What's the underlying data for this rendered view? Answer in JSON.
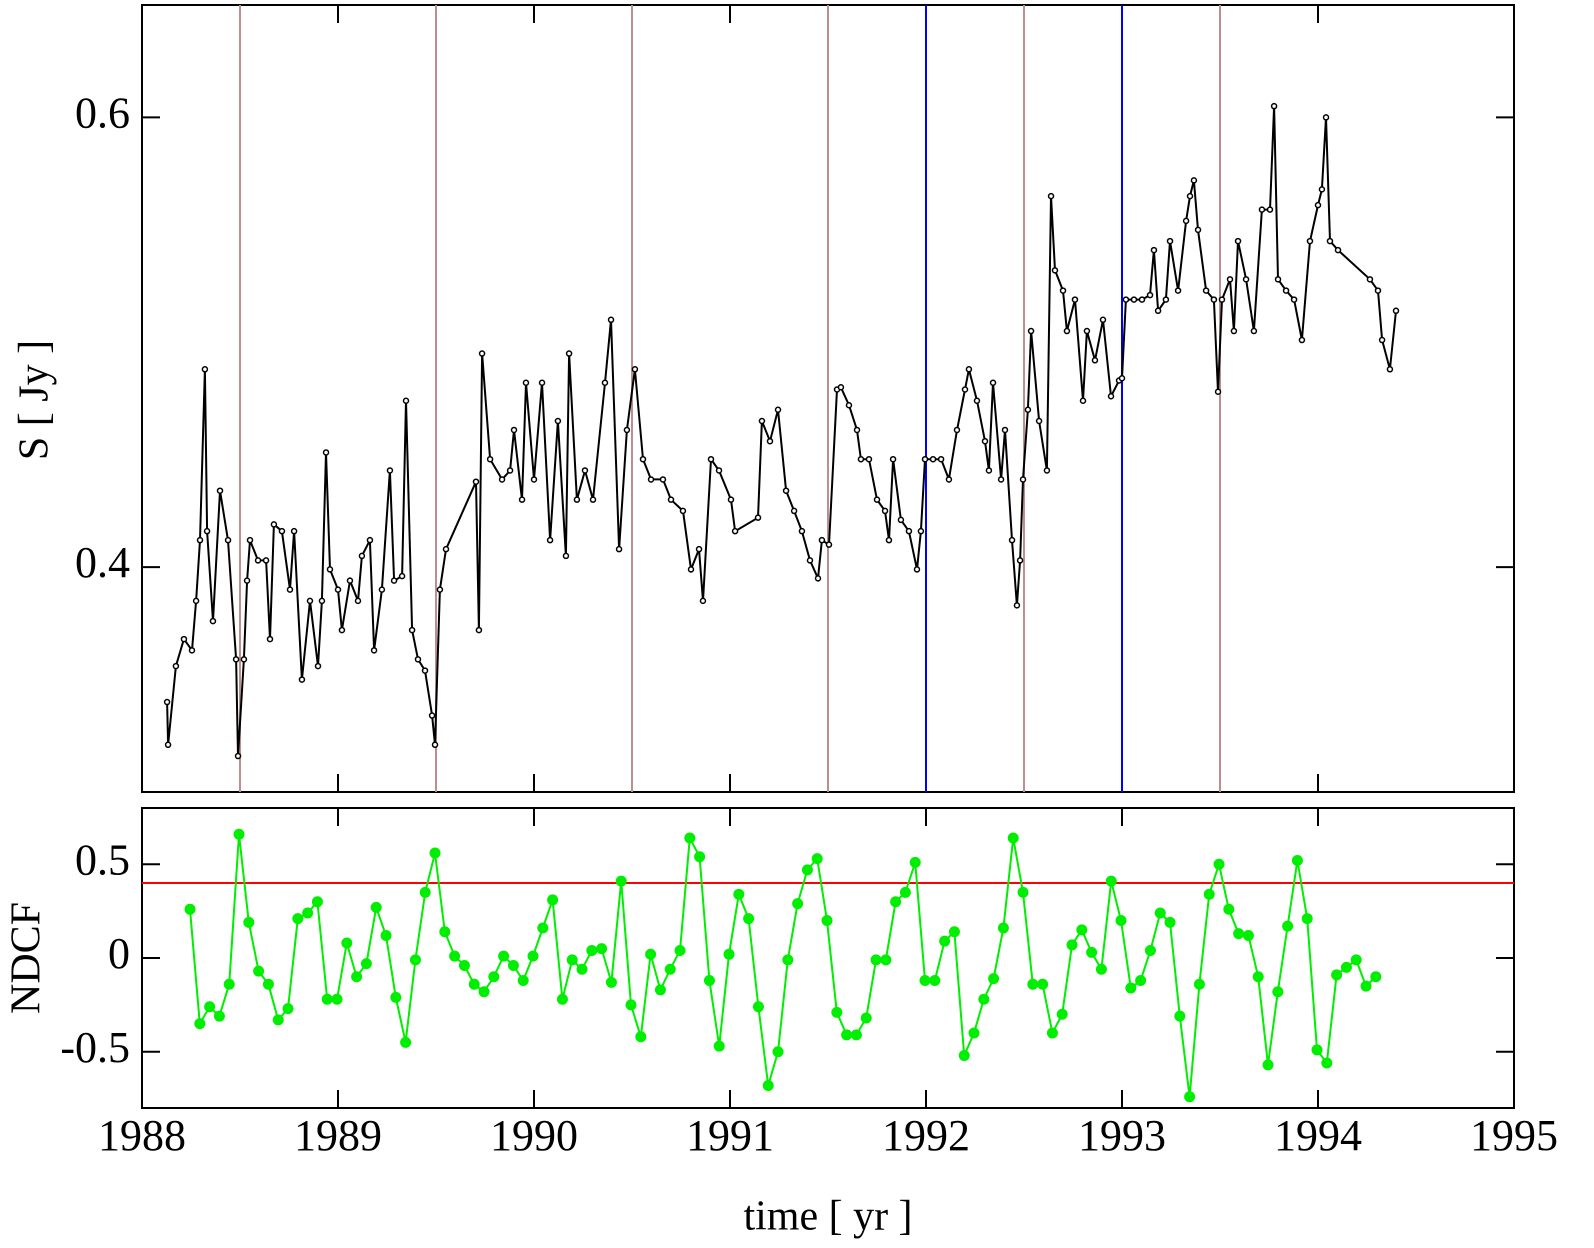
{
  "chart_data": [
    {
      "type": "line",
      "y_label": "S [ Jy ]",
      "color": "#000000",
      "xlim": [
        1988,
        1995
      ],
      "ylim": [
        0.3,
        0.65
      ],
      "yticks": [
        0.4,
        0.6
      ],
      "vlines": [
        {
          "x": 1988.5,
          "color": "#bc8f8f"
        },
        {
          "x": 1989.5,
          "color": "#bc8f8f"
        },
        {
          "x": 1990.5,
          "color": "#bc8f8f"
        },
        {
          "x": 1991.5,
          "color": "#bc8f8f"
        },
        {
          "x": 1992,
          "color": "#0000ff"
        },
        {
          "x": 1992.5,
          "color": "#bc8f8f"
        },
        {
          "x": 1993,
          "color": "#0000ff"
        },
        {
          "x": 1993.5,
          "color": "#bc8f8f"
        }
      ],
      "x": [
        1988.128,
        1988.133,
        1988.173,
        1988.214,
        1988.255,
        1988.276,
        1988.296,
        1988.321,
        1988.332,
        1988.362,
        1988.398,
        1988.439,
        1988.48,
        1988.49,
        1988.52,
        1988.536,
        1988.551,
        1988.592,
        1988.633,
        1988.653,
        1988.673,
        1988.714,
        1988.755,
        1988.776,
        1988.816,
        1988.857,
        1988.898,
        1988.918,
        1988.939,
        1988.959,
        1989.0,
        1989.02,
        1989.061,
        1989.102,
        1989.122,
        1989.163,
        1989.184,
        1989.224,
        1989.265,
        1989.286,
        1989.327,
        1989.347,
        1989.378,
        1989.408,
        1989.444,
        1989.48,
        1989.495,
        1989.52,
        1989.551,
        1989.704,
        1989.719,
        1989.735,
        1989.776,
        1989.837,
        1989.878,
        1989.898,
        1989.939,
        1989.959,
        1990.0,
        1990.041,
        1990.082,
        1990.122,
        1990.163,
        1990.179,
        1990.219,
        1990.26,
        1990.301,
        1990.362,
        1990.393,
        1990.434,
        1990.474,
        1990.515,
        1990.556,
        1990.597,
        1990.658,
        1990.699,
        1990.76,
        1990.801,
        1990.842,
        1990.862,
        1990.903,
        1990.944,
        1991.005,
        1991.026,
        1991.143,
        1991.163,
        1991.204,
        1991.245,
        1991.286,
        1991.327,
        1991.367,
        1991.408,
        1991.449,
        1991.469,
        1991.505,
        1991.546,
        1991.566,
        1991.607,
        1991.648,
        1991.668,
        1991.709,
        1991.75,
        1991.791,
        1991.811,
        1991.832,
        1991.872,
        1991.913,
        1991.954,
        1991.974,
        1991.995,
        1992.036,
        1992.077,
        1992.117,
        1992.158,
        1992.199,
        1992.219,
        1992.26,
        1992.301,
        1992.321,
        1992.342,
        1992.383,
        1992.403,
        1992.439,
        1992.464,
        1992.48,
        1992.495,
        1992.52,
        1992.536,
        1992.577,
        1992.617,
        1992.638,
        1992.658,
        1992.699,
        1992.719,
        1992.76,
        1992.801,
        1992.821,
        1992.862,
        1992.903,
        1992.944,
        1992.985,
        1993.0,
        1993.02,
        1993.061,
        1993.102,
        1993.143,
        1993.163,
        1993.184,
        1993.224,
        1993.245,
        1993.286,
        1993.327,
        1993.347,
        1993.367,
        1993.388,
        1993.429,
        1993.469,
        1993.49,
        1993.51,
        1993.551,
        1993.571,
        1993.592,
        1993.633,
        1993.673,
        1993.714,
        1993.755,
        1993.776,
        1993.796,
        1993.837,
        1993.878,
        1993.918,
        1993.959,
        1994.0,
        1994.02,
        1994.041,
        1994.061,
        1994.102,
        1994.265,
        1994.306,
        1994.327,
        1994.367,
        1994.398
      ],
      "values": [
        0.34,
        0.321,
        0.356,
        0.368,
        0.363,
        0.385,
        0.412,
        0.488,
        0.416,
        0.376,
        0.434,
        0.412,
        0.359,
        0.316,
        0.359,
        0.394,
        0.412,
        0.403,
        0.403,
        0.368,
        0.419,
        0.416,
        0.39,
        0.416,
        0.35,
        0.385,
        0.356,
        0.385,
        0.451,
        0.399,
        0.39,
        0.372,
        0.394,
        0.385,
        0.405,
        0.412,
        0.363,
        0.39,
        0.443,
        0.394,
        0.396,
        0.474,
        0.372,
        0.359,
        0.354,
        0.334,
        0.321,
        0.39,
        0.408,
        0.438,
        0.372,
        0.495,
        0.448,
        0.439,
        0.443,
        0.461,
        0.43,
        0.482,
        0.439,
        0.482,
        0.412,
        0.465,
        0.405,
        0.495,
        0.43,
        0.443,
        0.43,
        0.482,
        0.51,
        0.408,
        0.461,
        0.488,
        0.448,
        0.439,
        0.439,
        0.43,
        0.425,
        0.399,
        0.408,
        0.385,
        0.448,
        0.443,
        0.43,
        0.416,
        0.422,
        0.465,
        0.456,
        0.47,
        0.434,
        0.425,
        0.416,
        0.403,
        0.395,
        0.412,
        0.41,
        0.479,
        0.48,
        0.472,
        0.461,
        0.448,
        0.448,
        0.43,
        0.425,
        0.412,
        0.448,
        0.421,
        0.416,
        0.399,
        0.416,
        0.448,
        0.448,
        0.448,
        0.439,
        0.461,
        0.479,
        0.488,
        0.474,
        0.456,
        0.443,
        0.482,
        0.439,
        0.461,
        0.412,
        0.383,
        0.403,
        0.439,
        0.47,
        0.505,
        0.465,
        0.443,
        0.565,
        0.532,
        0.523,
        0.505,
        0.519,
        0.474,
        0.505,
        0.492,
        0.51,
        0.476,
        0.483,
        0.484,
        0.519,
        0.519,
        0.519,
        0.521,
        0.541,
        0.514,
        0.519,
        0.545,
        0.523,
        0.554,
        0.565,
        0.572,
        0.55,
        0.523,
        0.519,
        0.478,
        0.519,
        0.528,
        0.505,
        0.545,
        0.528,
        0.505,
        0.559,
        0.559,
        0.605,
        0.528,
        0.523,
        0.519,
        0.501,
        0.545,
        0.561,
        0.568,
        0.6,
        0.545,
        0.541,
        0.528,
        0.523,
        0.501,
        0.488,
        0.514
      ]
    },
    {
      "type": "line",
      "y_label": "NDCF",
      "x_label": "time [ yr ]",
      "color": "#00ee00",
      "xlim": [
        1988,
        1995
      ],
      "xticks": [
        1988,
        1989,
        1990,
        1991,
        1992,
        1993,
        1994,
        1995
      ],
      "ylim": [
        -0.8,
        0.8
      ],
      "yticks": [
        -0.5,
        0,
        0.5
      ],
      "hline": {
        "y": 0.4,
        "color": "#ff0000"
      },
      "x": [
        1988.245,
        1988.295,
        1988.345,
        1988.395,
        1988.445,
        1988.495,
        1988.545,
        1988.595,
        1988.645,
        1988.695,
        1988.745,
        1988.795,
        1988.845,
        1988.895,
        1988.945,
        1988.995,
        1989.045,
        1989.095,
        1989.145,
        1989.195,
        1989.245,
        1989.295,
        1989.345,
        1989.395,
        1989.445,
        1989.495,
        1989.545,
        1989.595,
        1989.645,
        1989.695,
        1989.745,
        1989.795,
        1989.845,
        1989.895,
        1989.945,
        1989.995,
        1990.045,
        1990.095,
        1990.145,
        1990.195,
        1990.245,
        1990.295,
        1990.345,
        1990.395,
        1990.445,
        1990.495,
        1990.545,
        1990.595,
        1990.645,
        1990.695,
        1990.745,
        1990.795,
        1990.845,
        1990.895,
        1990.945,
        1990.995,
        1991.045,
        1991.095,
        1991.145,
        1991.195,
        1991.245,
        1991.295,
        1991.345,
        1991.395,
        1991.445,
        1991.495,
        1991.545,
        1991.595,
        1991.645,
        1991.695,
        1991.745,
        1991.795,
        1991.845,
        1991.895,
        1991.945,
        1991.995,
        1992.045,
        1992.095,
        1992.145,
        1992.195,
        1992.245,
        1992.295,
        1992.345,
        1992.395,
        1992.445,
        1992.495,
        1992.545,
        1992.595,
        1992.645,
        1992.695,
        1992.745,
        1992.795,
        1992.845,
        1992.895,
        1992.945,
        1992.995,
        1993.045,
        1993.095,
        1993.145,
        1993.195,
        1993.245,
        1993.295,
        1993.345,
        1993.395,
        1993.445,
        1993.495,
        1993.545,
        1993.595,
        1993.645,
        1993.695,
        1993.745,
        1993.795,
        1993.845,
        1993.895,
        1993.945,
        1993.995,
        1994.045,
        1994.095,
        1994.145,
        1994.195,
        1994.245,
        1994.295
      ],
      "values": [
        0.26,
        -0.35,
        -0.26,
        -0.31,
        -0.14,
        0.66,
        0.19,
        -0.07,
        -0.14,
        -0.33,
        -0.27,
        0.21,
        0.24,
        0.3,
        -0.22,
        -0.22,
        0.08,
        -0.1,
        -0.03,
        0.27,
        0.12,
        -0.21,
        -0.45,
        -0.01,
        0.35,
        0.56,
        0.14,
        0.01,
        -0.04,
        -0.14,
        -0.18,
        -0.1,
        0.01,
        -0.04,
        -0.12,
        0.01,
        0.16,
        0.31,
        -0.22,
        -0.01,
        -0.06,
        0.04,
        0.05,
        -0.13,
        0.41,
        -0.25,
        -0.42,
        0.02,
        -0.17,
        -0.06,
        0.04,
        0.64,
        0.54,
        -0.12,
        -0.47,
        0.02,
        0.34,
        0.21,
        -0.26,
        -0.68,
        -0.5,
        -0.01,
        0.29,
        0.47,
        0.53,
        0.2,
        -0.29,
        -0.41,
        -0.41,
        -0.32,
        -0.01,
        -0.01,
        0.3,
        0.35,
        0.51,
        -0.12,
        -0.12,
        0.09,
        0.14,
        -0.52,
        -0.4,
        -0.22,
        -0.11,
        0.16,
        0.64,
        0.35,
        -0.14,
        -0.14,
        -0.4,
        -0.3,
        0.07,
        0.15,
        0.03,
        -0.06,
        0.41,
        0.2,
        -0.16,
        -0.12,
        0.04,
        0.24,
        0.19,
        -0.31,
        -0.74,
        -0.14,
        0.34,
        0.5,
        0.26,
        0.13,
        0.12,
        -0.1,
        -0.57,
        -0.18,
        0.17,
        0.52,
        0.21,
        -0.49,
        -0.56,
        -0.09,
        -0.05,
        -0.01,
        -0.15,
        -0.1
      ]
    }
  ]
}
